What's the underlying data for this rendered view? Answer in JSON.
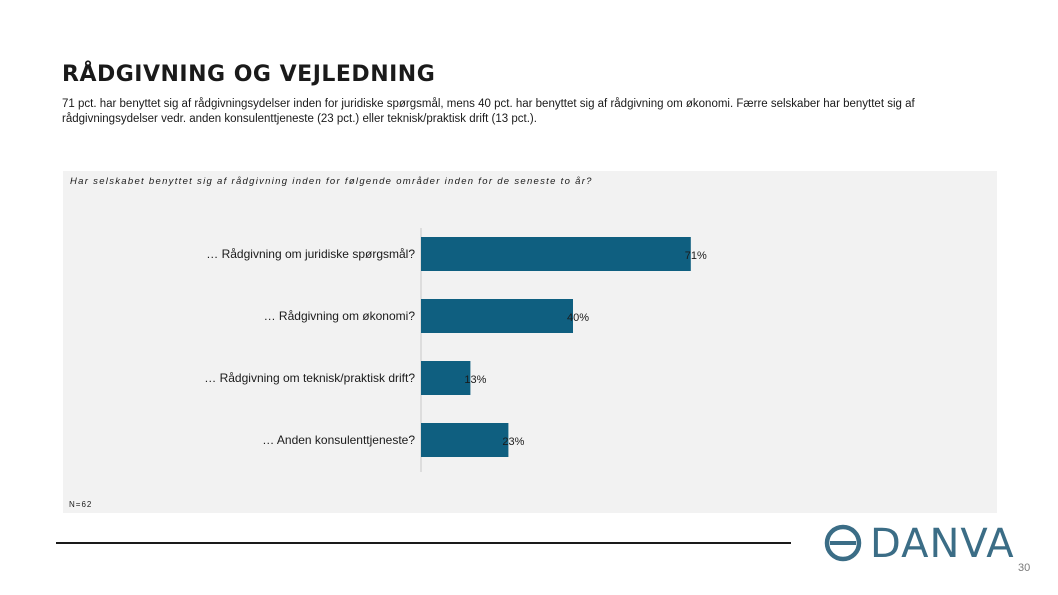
{
  "header": {
    "title": "RÅDGIVNING OG VEJLEDNING",
    "subtitle": "71 pct. har benyttet sig af rådgivningsydelser inden for juridiske spørgsmål, mens 40 pct. har benyttet sig af rådgivning om økonomi. Færre selskaber har benyttet sig af rådgivningsydelser vedr. anden konsulenttjeneste (23 pct.) eller teknisk/praktisk drift (13 pct.)."
  },
  "panel": {
    "question": "Har selskabet benyttet sig af rådgivning inden for følgende områder inden for de seneste to år?",
    "n_label": "N=62"
  },
  "chart_data": {
    "type": "bar",
    "orientation": "horizontal",
    "categories": [
      "… Rådgivning om juridiske spørgsmål?",
      "… Rådgivning om økonomi?",
      "… Rådgivning om teknisk/praktisk drift?",
      "… Anden konsulenttjeneste?"
    ],
    "values": [
      71,
      40,
      13,
      23
    ],
    "value_labels": [
      "71%",
      "40%",
      "13%",
      "23%"
    ],
    "unit": "%",
    "xlim": [
      0,
      100
    ],
    "bar_color": "#0f5f80",
    "grid": false,
    "legend": "none"
  },
  "logo": {
    "text": "DANVA",
    "color": "#3b6d86"
  },
  "footer": {
    "page_number": "30"
  }
}
